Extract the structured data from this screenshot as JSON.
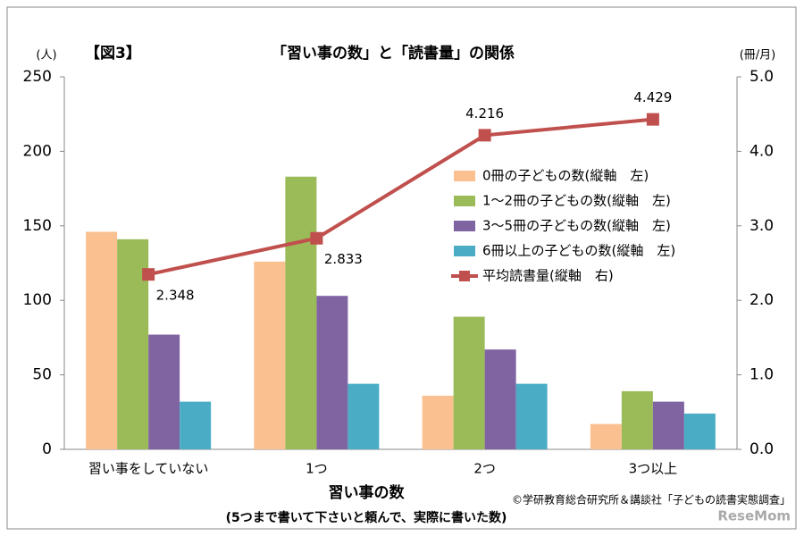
{
  "chart_data": {
    "type": "bar",
    "figure_label": "【図3】",
    "title": "「習い事の数」と「読書量」の関係",
    "y_unit": "(人)",
    "y2_unit": "(冊/月)",
    "x_label": "習い事の数",
    "x_sublabel": "(5つまで書いて下さいと頼んで、実際に書いた数)",
    "source": "©学研教育総合研究所＆講談社「子どもの読書実態調査」",
    "watermark": "ReseMom",
    "categories": [
      "習い事をしていない",
      "1つ",
      "2つ",
      "3つ以上"
    ],
    "series": [
      {
        "name": "0冊の子どもの数(縦軸　左)",
        "color": "#fac090",
        "values": [
          146,
          126,
          36,
          17
        ]
      },
      {
        "name": "1～2冊の子どもの数(縦軸　左)",
        "color": "#9bbb59",
        "values": [
          141,
          183,
          89,
          39
        ]
      },
      {
        "name": "3～5冊の子どもの数(縦軸　左)",
        "color": "#8064a2",
        "values": [
          77,
          103,
          67,
          32
        ]
      },
      {
        "name": "6冊以上の子どもの数(縦軸　左)",
        "color": "#4bacc6",
        "values": [
          32,
          44,
          44,
          24
        ]
      },
      {
        "name": "平均読書量(縦軸　右)",
        "color": "#c0504d",
        "type": "line",
        "axis": "y2",
        "values": [
          2.348,
          2.833,
          4.216,
          4.429
        ]
      }
    ],
    "ylim": [
      0,
      250
    ],
    "yticks": [
      0,
      50,
      100,
      150,
      200,
      250
    ],
    "y2lim": [
      0,
      5
    ],
    "y2ticks": [
      {
        "value": 0,
        "label": "0.0"
      },
      {
        "value": 1,
        "label": "1.0"
      },
      {
        "value": 2,
        "label": "2.0"
      },
      {
        "value": 3,
        "label": "3.0"
      },
      {
        "value": 4,
        "label": "4.0"
      },
      {
        "value": 5,
        "label": "5.0"
      }
    ],
    "grid": false
  }
}
